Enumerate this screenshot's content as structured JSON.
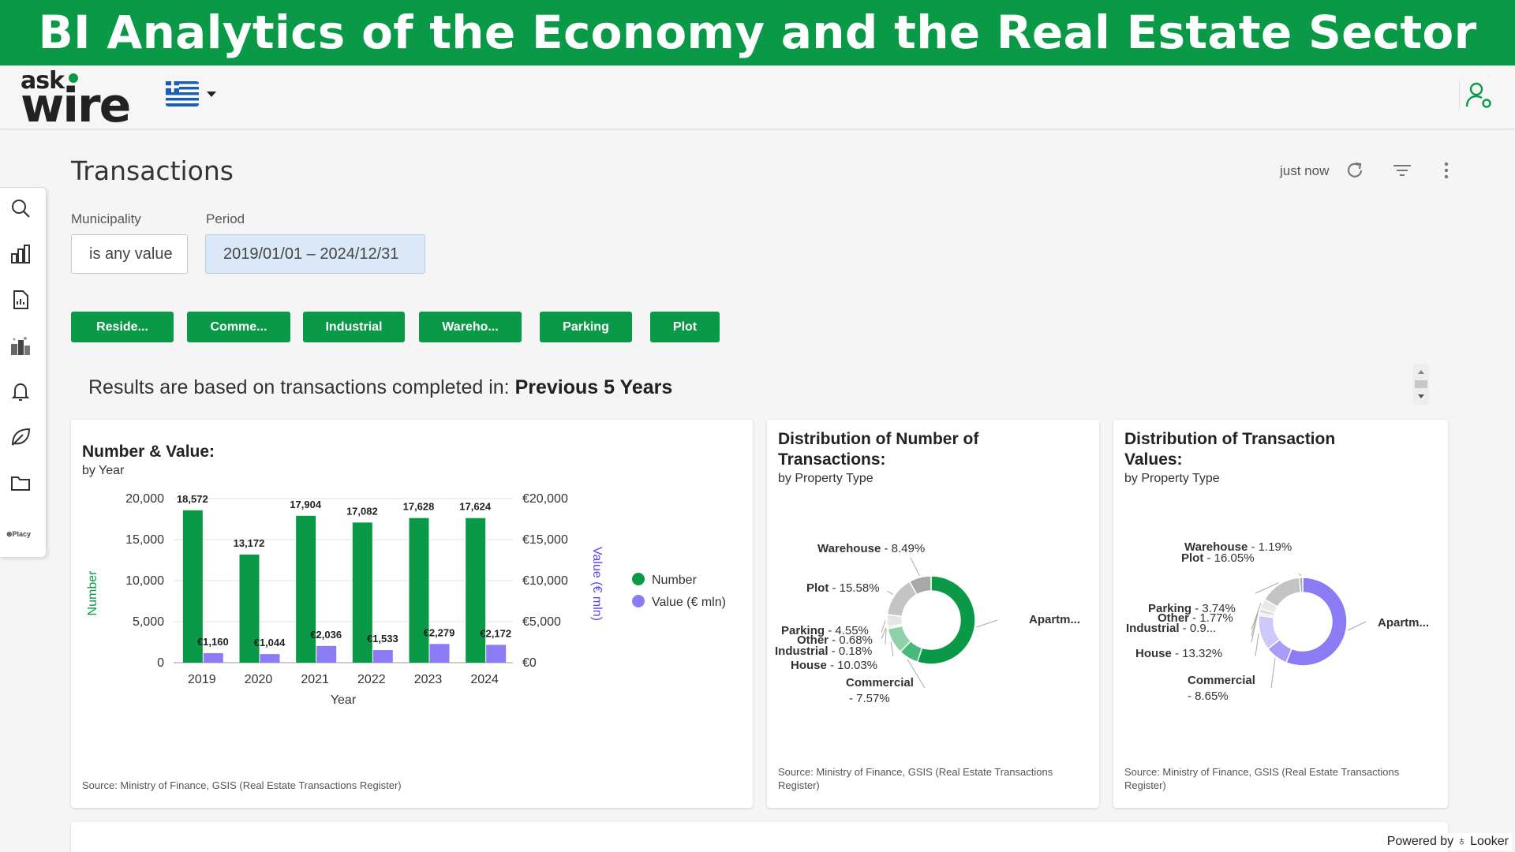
{
  "banner": {
    "title": "BI Analytics of the Economy and the Real Estate Sector"
  },
  "brand": {
    "ask": "ask",
    "wire": "wire",
    "colors": {
      "green": "#0a9a47",
      "purple": "#8b7cf6"
    }
  },
  "header": {
    "language": "Greek flag",
    "user_icon": "user-settings-icon"
  },
  "sidebar": {
    "icons": [
      "search-icon",
      "bar-chart-icon",
      "report-icon",
      "city-icon",
      "bell-icon",
      "leaf-icon",
      "folder-icon"
    ],
    "placy": "Placy"
  },
  "page": {
    "title": "Transactions",
    "updated": "just now",
    "icons": [
      "refresh-icon",
      "filter-icon",
      "more-vert-icon"
    ]
  },
  "filters": {
    "municipality": {
      "label": "Municipality",
      "value": "is any value"
    },
    "period": {
      "label": "Period",
      "value": "2019/01/01 – 2024/12/31"
    }
  },
  "chips": [
    "Reside...",
    "Comme...",
    "Industrial",
    "Wareho...",
    "Parking",
    "Plot"
  ],
  "results": {
    "prefix": "Results are based on transactions completed in: ",
    "value": "Previous 5 Years"
  },
  "cards": {
    "number_value": {
      "title": "Number & Value:",
      "subtitle": "by Year",
      "source": "Source: Ministry of Finance, GSIS (Real Estate Transactions Register)"
    },
    "dist_number": {
      "title_l1": "Distribution of Number of",
      "title_l2": "Transactions:",
      "subtitle": "by Property Type",
      "source_l1": "Source: Ministry of Finance, GSIS (Real Estate Transactions",
      "source_l2": "Register)"
    },
    "dist_value": {
      "title_l1": "Distribution of Transaction",
      "title_l2": "Values:",
      "subtitle": "by Property Type",
      "source_l1": "Source: Ministry of Finance, GSIS (Real Estate Transactions",
      "source_l2": "Register)"
    }
  },
  "chart_data": [
    {
      "type": "bar",
      "categories": [
        "2019",
        "2020",
        "2021",
        "2022",
        "2023",
        "2024"
      ],
      "series": [
        {
          "name": "Number",
          "values": [
            18572,
            13172,
            17904,
            17082,
            17628,
            17624
          ],
          "labels": [
            "18,572",
            "13,172",
            "17,904",
            "17,082",
            "17,628",
            "17,624"
          ],
          "color": "#0a9a47"
        },
        {
          "name": "Value (€ mln)",
          "values": [
            1160,
            1044,
            2036,
            1533,
            2279,
            2172
          ],
          "labels": [
            "€1,160",
            "€1,044",
            "€2,036",
            "€1,533",
            "€2,279",
            "€2,172"
          ],
          "color": "#8b7cf6"
        }
      ],
      "title": "Number & Value:",
      "subtitle": "by Year",
      "xlabel": "Year",
      "ylabel": "Number",
      "y2label": "Value (€ mln)",
      "ylim": [
        0,
        20000
      ],
      "y2lim": [
        0,
        20000
      ],
      "yticks": [
        "0",
        "5,000",
        "10,000",
        "15,000",
        "20,000"
      ],
      "y2ticks": [
        "€0",
        "€5,000",
        "€10,000",
        "€15,000",
        "€20,000"
      ],
      "grid": true,
      "legend": "right"
    },
    {
      "type": "pie",
      "title": "Distribution of Number of Transactions:",
      "subtitle": "by Property Type",
      "slices": [
        {
          "name": "Apartm...",
          "label": "Apartm...",
          "value": 57.6,
          "color": "#0a9a47"
        },
        {
          "name": "Commercial",
          "label": "Commercial",
          "label2": "- 7.57%",
          "value": 7.57,
          "color": "#48b97a"
        },
        {
          "name": "House",
          "label": "House",
          "label2": " - 10.03%",
          "value": 10.03,
          "color": "#8fd1ab"
        },
        {
          "name": "Industrial",
          "label": "Industrial",
          "label2": " - 0.18%",
          "value": 0.18,
          "color": "#bfe6cf"
        },
        {
          "name": "Other",
          "label": "Other",
          "label2": " - 0.68%",
          "value": 0.68,
          "color": "#d8d8d8"
        },
        {
          "name": "Parking",
          "label": "Parking",
          "label2": " - 4.55%",
          "value": 4.55,
          "color": "#e6e6e6"
        },
        {
          "name": "Plot",
          "label": "Plot",
          "label2": " - 15.58%",
          "value": 15.58,
          "color": "#c4c4c4"
        },
        {
          "name": "Warehouse",
          "label": "Warehouse",
          "label2": " - 8.49%",
          "value": 8.49,
          "color": "#a8a8a8"
        }
      ]
    },
    {
      "type": "pie",
      "title": "Distribution of Transaction Values:",
      "subtitle": "by Property Type",
      "slices": [
        {
          "name": "Apartm...",
          "label": "Apartm...",
          "value": 58.4,
          "color": "#8b7cf6"
        },
        {
          "name": "Commercial",
          "label": "Commercial",
          "label2": "- 8.65%",
          "value": 8.65,
          "color": "#a89cf8"
        },
        {
          "name": "House",
          "label": "House",
          "label2": " - 13.32%",
          "value": 13.32,
          "color": "#cfc8fb"
        },
        {
          "name": "Industrial",
          "label": "Industrial",
          "label2": " - 0.9...",
          "value": 0.9,
          "color": "#e4e0fc"
        },
        {
          "name": "Other",
          "label": "Other",
          "label2": " - 1.77%",
          "value": 1.77,
          "color": "#dedede"
        },
        {
          "name": "Parking",
          "label": "Parking",
          "label2": " - 3.74%",
          "value": 3.74,
          "color": "#e8e8e8"
        },
        {
          "name": "Plot",
          "label": "Plot",
          "label2": " - 16.05%",
          "value": 16.05,
          "color": "#c4c4c4"
        },
        {
          "name": "Warehouse",
          "label": "Warehouse",
          "label2": " - 1.19%",
          "value": 1.19,
          "color": "#a8a8a8"
        }
      ]
    }
  ],
  "footer": {
    "powered": "Powered by ♁ Looker"
  }
}
